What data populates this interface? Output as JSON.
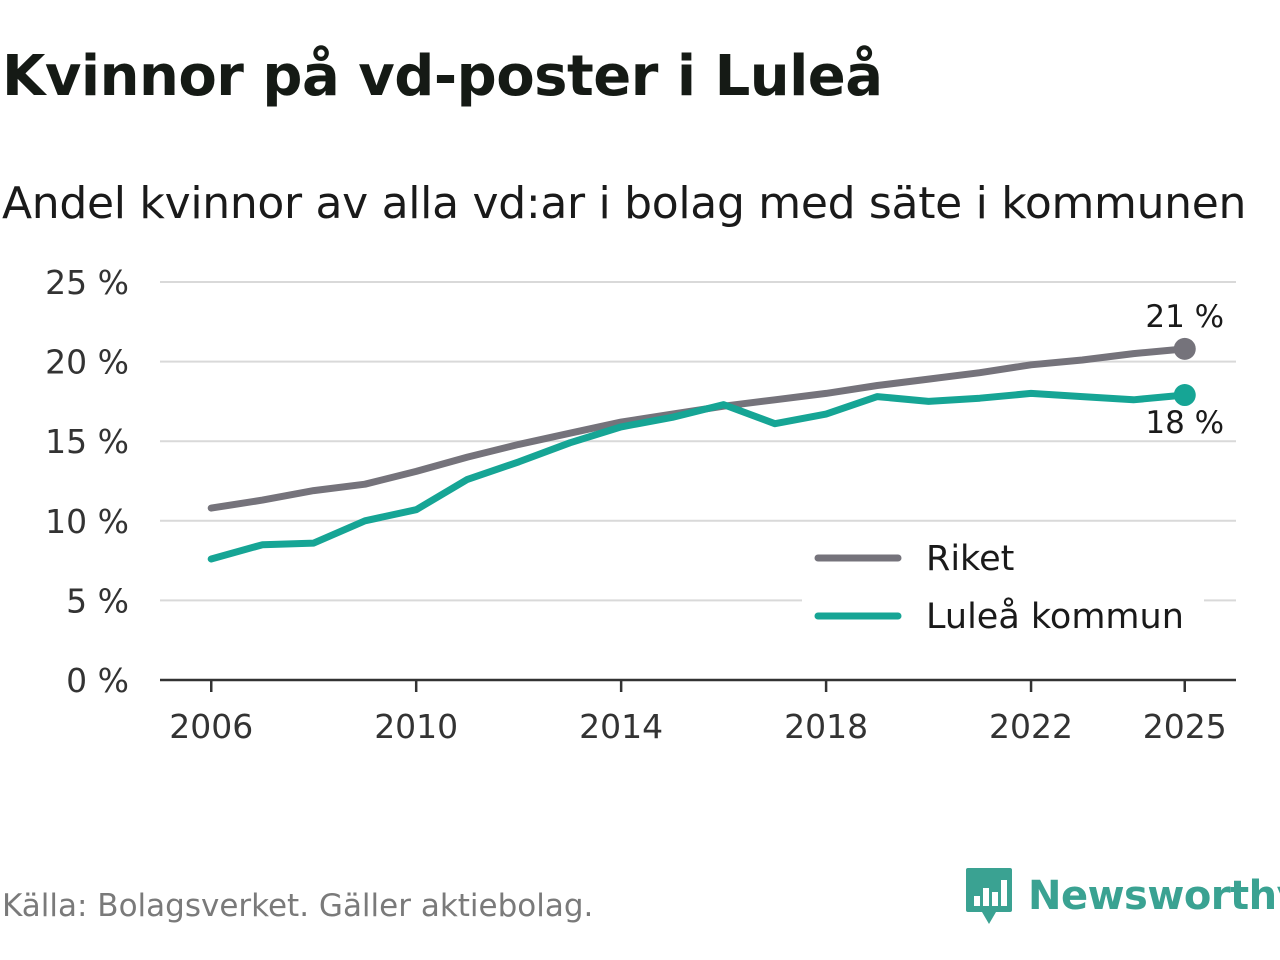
{
  "title": "Kvinnor på vd-poster i Luleå",
  "subtitle": "Andel kvinnor av alla vd:ar i bolag med säte i kommunen",
  "source": "Källa: Bolagsverket. Gäller aktiebolag.",
  "brand": "Newsworthy",
  "colors": {
    "riket": "#75737b",
    "lulea": "#16a595",
    "grid": "#d9d9d9",
    "axis": "#333333",
    "brand": "#3aa292"
  },
  "chart_data": {
    "type": "line",
    "title": "Kvinnor på vd-poster i Luleå",
    "subtitle": "Andel kvinnor av alla vd:ar i bolag med säte i kommunen",
    "xlabel": "",
    "ylabel": "",
    "x": [
      2006,
      2007,
      2008,
      2009,
      2010,
      2011,
      2012,
      2013,
      2014,
      2015,
      2016,
      2017,
      2018,
      2019,
      2020,
      2021,
      2022,
      2023,
      2024,
      2025
    ],
    "xlim": [
      2005,
      2026
    ],
    "ylim": [
      0,
      25
    ],
    "xticks": [
      2006,
      2010,
      2014,
      2018,
      2022,
      2025
    ],
    "yticks": [
      0,
      5,
      10,
      15,
      20,
      25
    ],
    "ytick_labels": [
      "0 %",
      "5 %",
      "10 %",
      "15 %",
      "20 %",
      "25 %"
    ],
    "xtick_labels": [
      "2006",
      "2010",
      "2014",
      "2018",
      "2022",
      "2025"
    ],
    "grid": true,
    "legend_position": "bottom-right",
    "series": [
      {
        "name": "Riket",
        "color_key": "riket",
        "values": [
          10.8,
          11.3,
          11.9,
          12.3,
          13.1,
          14.0,
          14.8,
          15.5,
          16.2,
          16.7,
          17.2,
          17.6,
          18.0,
          18.5,
          18.9,
          19.3,
          19.8,
          20.1,
          20.5,
          20.8
        ],
        "end_label": "21 %",
        "end_label_position": "above"
      },
      {
        "name": "Luleå kommun",
        "color_key": "lulea",
        "values": [
          7.6,
          8.5,
          8.6,
          10.0,
          10.7,
          12.6,
          13.7,
          14.9,
          15.9,
          16.5,
          17.3,
          16.1,
          16.7,
          17.8,
          17.5,
          17.7,
          18.0,
          17.8,
          17.6,
          17.9
        ],
        "end_label": "18 %",
        "end_label_position": "below"
      }
    ]
  }
}
